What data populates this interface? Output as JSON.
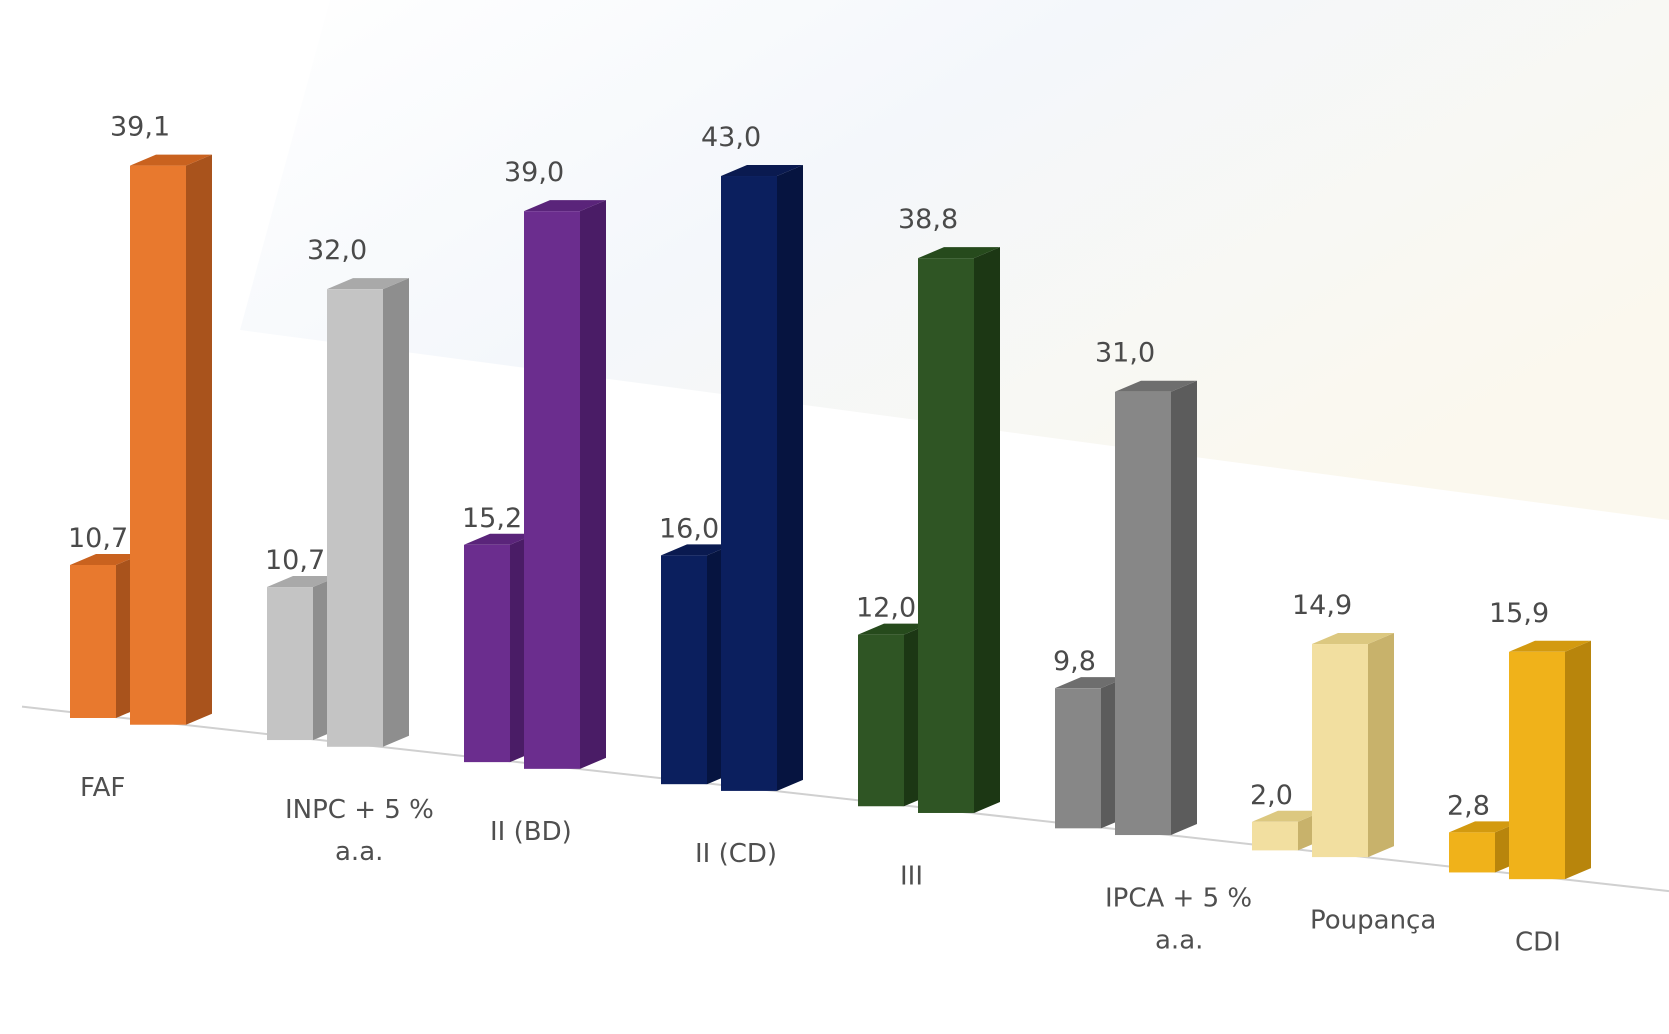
{
  "chart_data": {
    "type": "bar",
    "subtype": "3d-clustered-perspective",
    "categories": [
      "FAF",
      "INPC + 5 %\na.a.",
      "II (BD)",
      "II (CD)",
      "III",
      "IPCA + 5 %\na.a.",
      "Poupança",
      "CDI"
    ],
    "series": [
      {
        "values": [
          10.7,
          10.7,
          15.2,
          16.0,
          12.0,
          9.8,
          2.0,
          2.8
        ]
      },
      {
        "values": [
          39.1,
          32.0,
          39.0,
          43.0,
          38.8,
          31.0,
          14.9,
          15.9
        ]
      }
    ],
    "value_labels": [
      [
        "10,7",
        "10,7",
        "15,2",
        "16,0",
        "12,0",
        "9,8",
        "2,0",
        "2,8"
      ],
      [
        "39,1",
        "32,0",
        "39,0",
        "43,0",
        "38,8",
        "31,0",
        "14,9",
        "15,9"
      ]
    ],
    "colors": [
      {
        "front": "#e8792e",
        "side": "#a9531c",
        "top": "#c9621f"
      },
      {
        "front": "#c4c4c4",
        "side": "#8e8e8e",
        "top": "#a9a9a9"
      },
      {
        "front": "#6b2d8e",
        "side": "#4a1c66",
        "top": "#5a247a"
      },
      {
        "front": "#0b1f5e",
        "side": "#061440",
        "top": "#0a1a50"
      },
      {
        "front": "#2f5524",
        "side": "#1c3714",
        "top": "#264a1c"
      },
      {
        "front": "#878787",
        "side": "#5c5c5c",
        "top": "#6e6e6e"
      },
      {
        "front": "#f2dfa0",
        "side": "#c8b26b",
        "top": "#dcc880"
      },
      {
        "front": "#f0b21a",
        "side": "#b8850c",
        "top": "#d39a10"
      }
    ],
    "title": "",
    "xlabel": "",
    "ylabel": "",
    "grid": false,
    "legend": "none"
  }
}
